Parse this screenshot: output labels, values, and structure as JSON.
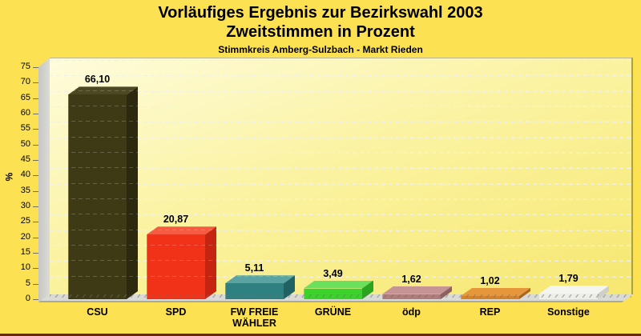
{
  "title": {
    "line1": "Vorläufiges Ergebnis zur Bezirkswahl 2003",
    "line2": "Zweitstimmen in Prozent",
    "caption": "Stimmkreis Amberg-Sulzbach - Markt Rieden"
  },
  "chart_data": {
    "type": "bar",
    "style": "3d-column",
    "title": "Vorläufiges Ergebnis zur Bezirkswahl 2003 — Zweitstimmen in Prozent",
    "subtitle": "Stimmkreis Amberg-Sulzbach - Markt Rieden",
    "xlabel": "",
    "ylabel": "%",
    "ylim": [
      0,
      75
    ],
    "ytick_step": 5,
    "yticks": [
      0,
      5,
      10,
      15,
      20,
      25,
      30,
      35,
      40,
      45,
      50,
      55,
      60,
      65,
      70,
      75
    ],
    "grid": true,
    "legend": false,
    "categories": [
      "CSU",
      "SPD",
      "FW FREIE WÄHLER",
      "GRÜNE",
      "ödp",
      "REP",
      "Sonstige"
    ],
    "values": [
      66.1,
      20.87,
      5.11,
      3.49,
      1.62,
      1.02,
      1.79
    ],
    "value_labels": [
      "66,10",
      "20,87",
      "5,11",
      "3,49",
      "1,62",
      "1,02",
      "1,79"
    ],
    "bar_colors": [
      {
        "front": "#3E3A16",
        "top": "#4C4824",
        "side": "#2C290E"
      },
      {
        "front": "#F23119",
        "top": "#F55B41",
        "side": "#C52410"
      },
      {
        "front": "#2E8081",
        "top": "#5AA3A2",
        "side": "#206263"
      },
      {
        "front": "#3BD32B",
        "top": "#6BE05C",
        "side": "#2BA51F"
      },
      {
        "front": "#B07C7C",
        "top": "#C69494",
        "side": "#8E6060"
      },
      {
        "front": "#D5832B",
        "top": "#E6973C",
        "side": "#AC671F"
      },
      {
        "front": "#EDEDE9",
        "top": "#F4F4F1",
        "side": "#CFCFC9"
      }
    ]
  },
  "colors": {
    "page_bg": "#FCE153",
    "plot_bg_top": "#FEFCDC",
    "plot_bg_bottom": "#F6E76F",
    "wall_gray": "#D2D2CE",
    "floor_gray": "#DADAD6",
    "right_border": "#A9A14A",
    "bottom_strip": "#6E2318",
    "text": "#000000"
  }
}
